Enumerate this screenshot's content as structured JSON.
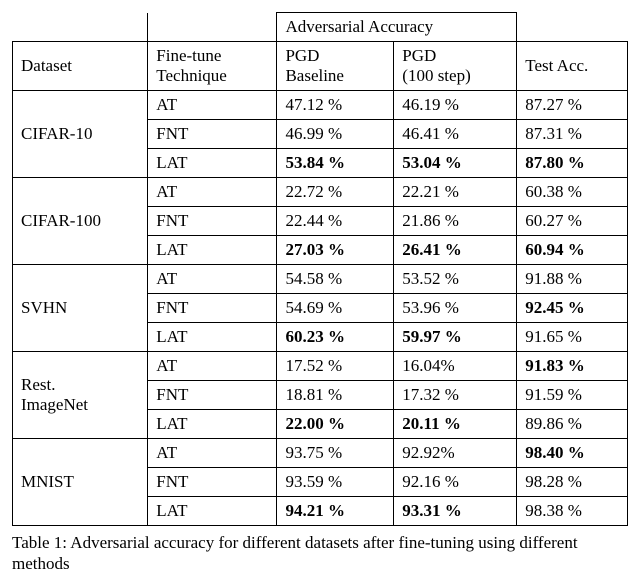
{
  "header": {
    "adv_acc": "Adversarial Accuracy",
    "dataset": "Dataset",
    "fine_tune_l1": "Fine-tune",
    "fine_tune_l2": "Technique",
    "pgd_base_l1": "PGD",
    "pgd_base_l2": "Baseline",
    "pgd_100_l1": "PGD",
    "pgd_100_l2": "(100 step)",
    "test_acc": "Test Acc."
  },
  "datasets": [
    {
      "name_l1": "CIFAR-10",
      "name_l2": "",
      "rows": [
        {
          "tech": "AT",
          "pgd_base": "47.12 %",
          "pgd_100": "46.19 %",
          "test": "87.27 %",
          "b_base": false,
          "b_100": false,
          "b_test": false
        },
        {
          "tech": "FNT",
          "pgd_base": "46.99 %",
          "pgd_100": "46.41 %",
          "test": "87.31 %",
          "b_base": false,
          "b_100": false,
          "b_test": false
        },
        {
          "tech": "LAT",
          "pgd_base": "53.84 %",
          "pgd_100": "53.04 %",
          "test": "87.80 %",
          "b_base": true,
          "b_100": true,
          "b_test": true
        }
      ]
    },
    {
      "name_l1": "CIFAR-100",
      "name_l2": "",
      "rows": [
        {
          "tech": "AT",
          "pgd_base": "22.72 %",
          "pgd_100": "22.21 %",
          "test": "60.38 %",
          "b_base": false,
          "b_100": false,
          "b_test": false
        },
        {
          "tech": "FNT",
          "pgd_base": "22.44 %",
          "pgd_100": "21.86 %",
          "test": "60.27 %",
          "b_base": false,
          "b_100": false,
          "b_test": false
        },
        {
          "tech": "LAT",
          "pgd_base": "27.03 %",
          "pgd_100": "26.41 %",
          "test": "60.94 %",
          "b_base": true,
          "b_100": true,
          "b_test": true
        }
      ]
    },
    {
      "name_l1": "SVHN",
      "name_l2": "",
      "rows": [
        {
          "tech": "AT",
          "pgd_base": "54.58 %",
          "pgd_100": "53.52 %",
          "test": "91.88 %",
          "b_base": false,
          "b_100": false,
          "b_test": false
        },
        {
          "tech": "FNT",
          "pgd_base": "54.69 %",
          "pgd_100": "53.96 %",
          "test": "92.45 %",
          "b_base": false,
          "b_100": false,
          "b_test": true
        },
        {
          "tech": "LAT",
          "pgd_base": "60.23 %",
          "pgd_100": "59.97 %",
          "test": "91.65 %",
          "b_base": true,
          "b_100": true,
          "b_test": false
        }
      ]
    },
    {
      "name_l1": "Rest.",
      "name_l2": "ImageNet",
      "rows": [
        {
          "tech": "AT",
          "pgd_base": "17.52 %",
          "pgd_100": "16.04%",
          "test": "91.83 %",
          "b_base": false,
          "b_100": false,
          "b_test": true
        },
        {
          "tech": "FNT",
          "pgd_base": "18.81 %",
          "pgd_100": "17.32 %",
          "test": "91.59 %",
          "b_base": false,
          "b_100": false,
          "b_test": false
        },
        {
          "tech": "LAT",
          "pgd_base": "22.00 %",
          "pgd_100": "20.11 %",
          "test": "89.86 %",
          "b_base": true,
          "b_100": true,
          "b_test": false
        }
      ]
    },
    {
      "name_l1": "MNIST",
      "name_l2": "",
      "rows": [
        {
          "tech": "AT",
          "pgd_base": "93.75 %",
          "pgd_100": "92.92%",
          "test": "98.40 %",
          "b_base": false,
          "b_100": false,
          "b_test": true
        },
        {
          "tech": "FNT",
          "pgd_base": "93.59 %",
          "pgd_100": "92.16 %",
          "test": "98.28 %",
          "b_base": false,
          "b_100": false,
          "b_test": false
        },
        {
          "tech": "LAT",
          "pgd_base": "94.21 %",
          "pgd_100": "93.31 %",
          "test": "98.38 %",
          "b_base": true,
          "b_100": true,
          "b_test": false
        }
      ]
    }
  ],
  "caption": "Table 1: Adversarial accuracy for different datasets after fine-tuning using different methods",
  "style": {
    "font_family": "Times New Roman",
    "font_size_pt": 13,
    "border_color": "#000000",
    "background_color": "#ffffff",
    "text_color": "#000000"
  }
}
